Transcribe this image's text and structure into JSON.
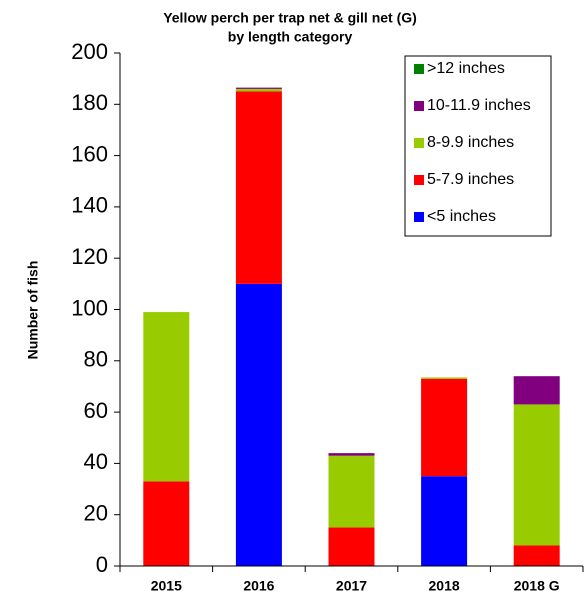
{
  "chart_data": {
    "type": "stacked_bar",
    "title": [
      "Yellow perch per trap net & gill net (G)",
      "by length category"
    ],
    "y_label": "Number of fish",
    "categories": [
      "2015",
      "2016",
      "2017",
      "2018",
      "2018 G"
    ],
    "series": [
      {
        "name": "<5 inches",
        "color": "#0000ff",
        "values": [
          0,
          110,
          0,
          35,
          0
        ]
      },
      {
        "name": "5-7.9 inches",
        "color": "#ff0000",
        "values": [
          33,
          75,
          15,
          38,
          8
        ]
      },
      {
        "name": "8-9.9 inches",
        "color": "#99cc00",
        "values": [
          66,
          1,
          28,
          0.5,
          55
        ]
      },
      {
        "name": "10-11.9 inches",
        "color": "#800080",
        "values": [
          0,
          0.5,
          1,
          0,
          11
        ]
      },
      {
        "name": ">12 inches",
        "color": "#008000",
        "values": [
          0,
          0,
          0,
          0,
          0
        ]
      }
    ],
    "ylim": [
      0,
      200
    ],
    "yticks": [
      0,
      20,
      40,
      60,
      80,
      100,
      120,
      140,
      160,
      180,
      200
    ],
    "legend": "upper right"
  }
}
